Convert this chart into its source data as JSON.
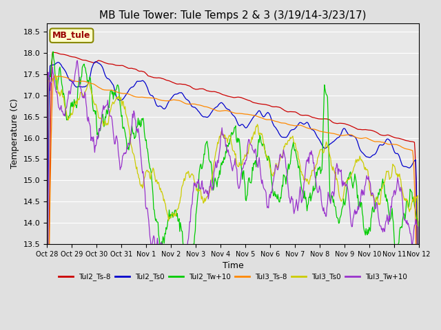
{
  "title": "MB Tule Tower: Tule Temps 2 & 3 (3/19/14-3/23/17)",
  "xlabel": "Time",
  "ylabel": "Temperature (C)",
  "ylim": [
    13.5,
    18.7
  ],
  "yticks": [
    13.5,
    14.0,
    14.5,
    15.0,
    15.5,
    16.0,
    16.5,
    17.0,
    17.5,
    18.0,
    18.5
  ],
  "xtick_labels": [
    "Oct 28",
    "Oct 29",
    "Oct 30",
    "Oct 31",
    "Nov 1",
    "Nov 2",
    "Nov 3",
    "Nov 4",
    "Nov 5",
    "Nov 6",
    "Nov 7",
    "Nov 8",
    "Nov 9",
    "Nov 10",
    "Nov 11",
    "Nov 12"
  ],
  "series_colors": [
    "#cc0000",
    "#0000cc",
    "#00cc00",
    "#ff8800",
    "#cccc00",
    "#9933cc"
  ],
  "series_names": [
    "Tul2_Ts-8",
    "Tul2_Ts0",
    "Tul2_Tw+10",
    "Tul3_Ts-8",
    "Tul3_Ts0",
    "Tul3_Tw+10"
  ],
  "legend_label": "MB_tule",
  "background_color": "#e0e0e0",
  "plot_bg_color": "#e8e8e8",
  "grid_color": "#ffffff",
  "title_fontsize": 11,
  "axis_fontsize": 9,
  "tick_fontsize": 8
}
